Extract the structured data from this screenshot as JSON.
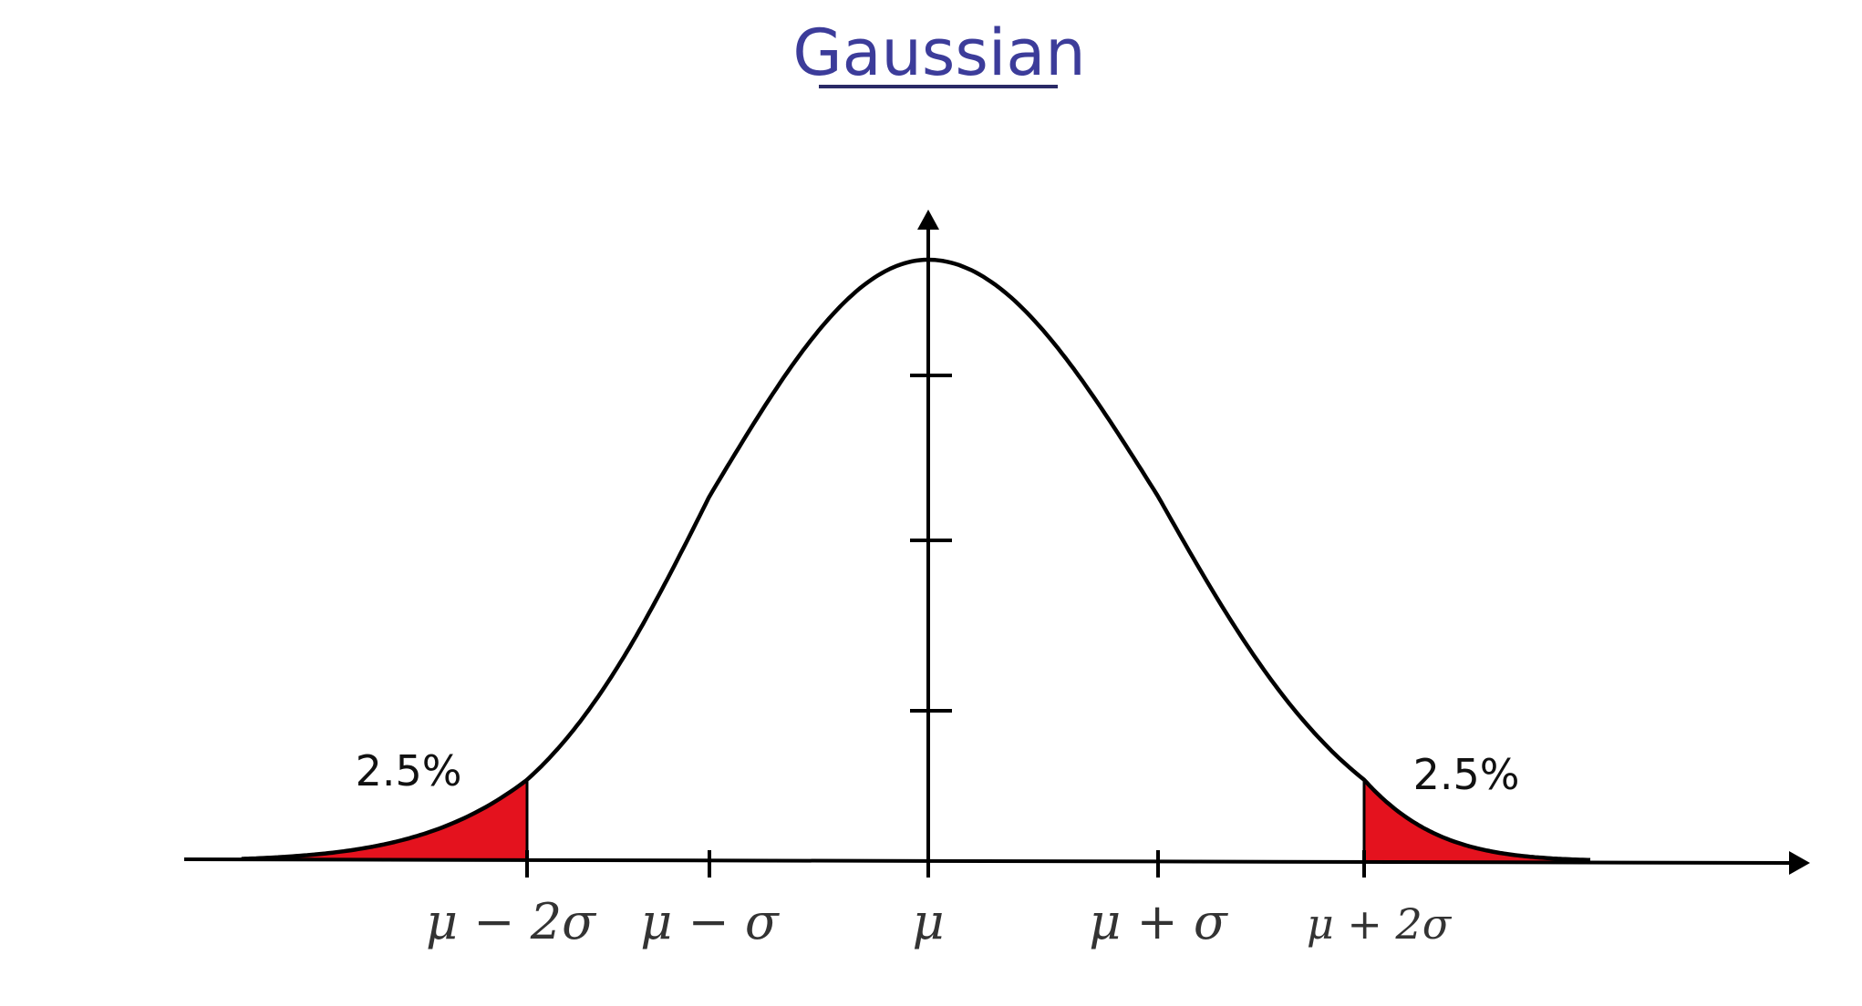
{
  "title": "Gaussian",
  "colors": {
    "title": "#3c3c9a",
    "curve": "#000000",
    "tail_fill": "#e4121e",
    "axis": "#000000"
  },
  "x_ticks": [
    {
      "value": -2,
      "label": "μ − 2σ"
    },
    {
      "value": -1,
      "label": "μ − σ"
    },
    {
      "value": 0,
      "label": "μ"
    },
    {
      "value": 1,
      "label": "μ + σ"
    },
    {
      "value": 2,
      "label": "μ + 2σ"
    }
  ],
  "tails": {
    "left": {
      "from": -3.5,
      "to": -2,
      "label": "2.5%"
    },
    "right": {
      "from": 2,
      "to": 3.5,
      "label": "2.5%"
    }
  },
  "y_tick_count": 3
}
